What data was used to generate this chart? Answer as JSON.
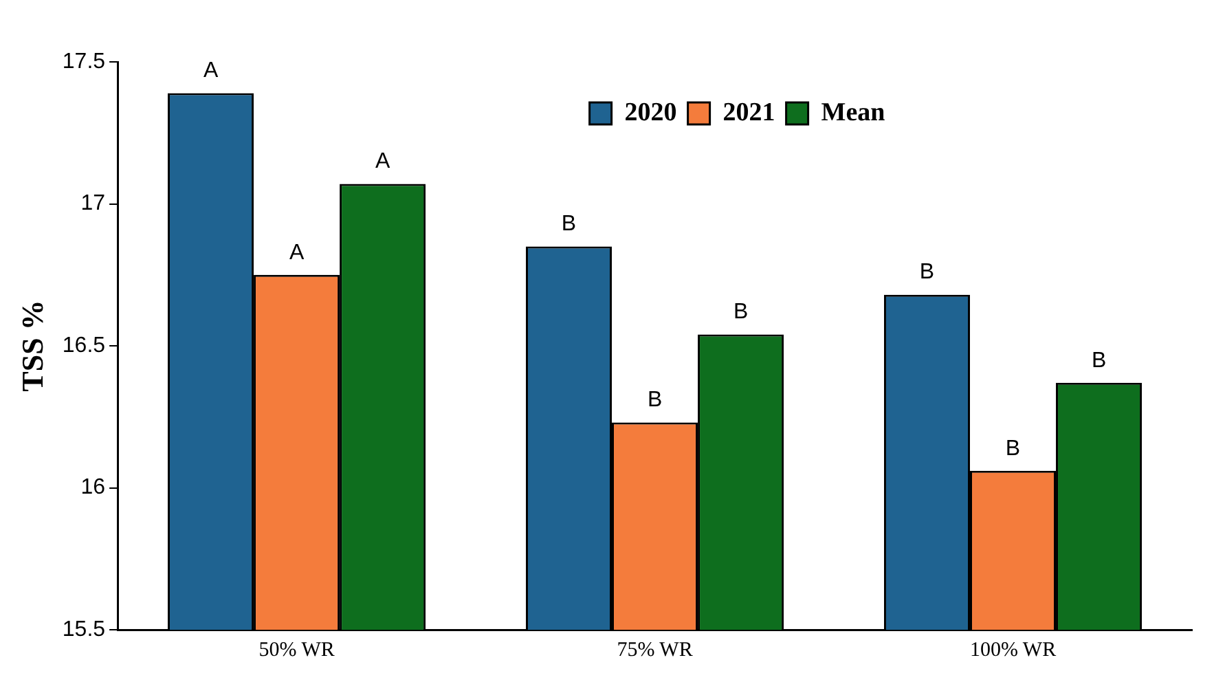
{
  "chart_data": {
    "type": "bar",
    "ylabel": "TSS %",
    "categories": [
      "50% WR",
      "75% WR",
      "100% WR"
    ],
    "series": [
      {
        "name": "2020",
        "color": "#1f6391",
        "values": [
          17.39,
          16.85,
          16.68
        ]
      },
      {
        "name": "2021",
        "color": "#f47c3c",
        "values": [
          16.75,
          16.23,
          16.06
        ]
      },
      {
        "name": "Mean",
        "color": "#0e6e1e",
        "values": [
          17.07,
          16.54,
          16.37
        ]
      }
    ],
    "ylim": [
      15.5,
      17.5
    ],
    "yticks": [
      15.5,
      16,
      16.5,
      17,
      17.5
    ],
    "grid": false,
    "legend": "top",
    "annotations": [
      "A",
      "A",
      "A",
      "B",
      "B",
      "B",
      "B",
      "B",
      "B"
    ]
  }
}
